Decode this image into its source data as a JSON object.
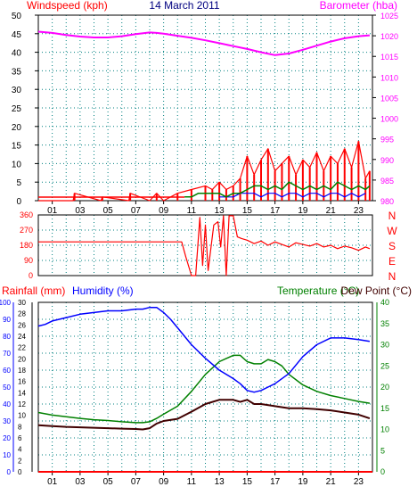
{
  "colors": {
    "windspeed": "#ff0000",
    "gust": "#ff0000",
    "wind_avg": "#008000",
    "wind_low": "#0000ff",
    "barometer": "#ff00ff",
    "direction": "#ff0000",
    "rainfall": "#ff0000",
    "humidity": "#0000ff",
    "temperature": "#008000",
    "dewpoint": "#400000",
    "axis_left": "#ff0000",
    "axis_baro": "#ff00ff",
    "axis_hum": "#0000ff",
    "axis_temp": "#008000",
    "grid": "#008080",
    "title": "#000080"
  },
  "chart_data": [
    {
      "type": "line",
      "title": "14 March 2011",
      "ylabel": "Windspeed (kph)",
      "y2label": "Barometer (hba)",
      "ylim": [
        0,
        50
      ],
      "y2lim": [
        980,
        1025
      ],
      "yticks": [
        0,
        5,
        10,
        15,
        20,
        25,
        30,
        35,
        40,
        45,
        50
      ],
      "y2ticks": [
        980,
        985,
        990,
        995,
        1000,
        1005,
        1010,
        1015,
        1020,
        1025
      ],
      "xlim": [
        0,
        24
      ],
      "xticks": [
        "01",
        "03",
        "05",
        "07",
        "09",
        "11",
        "13",
        "15",
        "17",
        "19",
        "21",
        "23"
      ],
      "grid": true,
      "series": [
        {
          "name": "Barometer",
          "axis": "right",
          "x": [
            0,
            1,
            2,
            3,
            4,
            5,
            6,
            7,
            8,
            8.5,
            9,
            10,
            11,
            12,
            13,
            14,
            15,
            16,
            17,
            18,
            19,
            20,
            21,
            22,
            23,
            23.8
          ],
          "values": [
            1021.0,
            1020.7,
            1020.2,
            1019.8,
            1019.6,
            1019.6,
            1019.9,
            1020.4,
            1020.8,
            1020.7,
            1020.5,
            1020.0,
            1019.5,
            1018.9,
            1018.2,
            1017.5,
            1016.8,
            1016.0,
            1015.3,
            1015.7,
            1016.6,
            1017.6,
            1018.6,
            1019.4,
            1019.9,
            1020.1
          ]
        },
        {
          "name": "Wind gust",
          "axis": "left",
          "x": [
            0,
            2.5,
            2.6,
            4.5,
            4.6,
            6.5,
            6.6,
            8.0,
            8.5,
            9.0,
            10.0,
            11.0,
            12.0,
            12.5,
            13.0,
            13.5,
            14.0,
            14.5,
            15.0,
            15.5,
            16.0,
            16.5,
            17.0,
            17.5,
            18.0,
            18.5,
            19.0,
            19.5,
            20.0,
            20.5,
            21.0,
            21.5,
            22.0,
            22.5,
            23.0,
            23.5,
            23.8
          ],
          "values": [
            0,
            0,
            2,
            0,
            1,
            0,
            2,
            0,
            2,
            0,
            2,
            3,
            4,
            3,
            5,
            3,
            4,
            6,
            12,
            7,
            11,
            14,
            8,
            10,
            12,
            7,
            11,
            9,
            13,
            8,
            12,
            10,
            14,
            9,
            16,
            6,
            8
          ]
        },
        {
          "name": "Wind average",
          "axis": "left",
          "x": [
            10.5,
            11.0,
            11.5,
            12.0,
            12.5,
            13.0,
            13.5,
            14.0,
            14.5,
            15.0,
            15.5,
            16.0,
            16.5,
            17.0,
            17.5,
            18.0,
            18.5,
            19.0,
            19.5,
            20.0,
            20.5,
            21.0,
            21.5,
            22.0,
            22.5,
            23.0,
            23.5,
            23.8
          ],
          "values": [
            1,
            1,
            2,
            2,
            2,
            2,
            1,
            2,
            2,
            3,
            4,
            4,
            3,
            4,
            3,
            5,
            4,
            3,
            4,
            3,
            4,
            3,
            5,
            4,
            3,
            4,
            3,
            4
          ]
        },
        {
          "name": "Wind low",
          "axis": "left",
          "x": [
            13.0,
            13.5,
            14.0,
            14.5,
            15.0,
            15.5,
            16.0,
            16.5,
            17.0,
            17.5,
            18.0,
            18.5,
            19.0,
            19.5,
            20.0,
            20.5,
            21.0,
            21.5,
            22.0,
            22.5,
            23.0,
            23.5
          ],
          "values": [
            1,
            1,
            1,
            2,
            2,
            2,
            1,
            2,
            2,
            1,
            2,
            2,
            1,
            2,
            2,
            1,
            2,
            2,
            1,
            2,
            1,
            2
          ]
        }
      ]
    },
    {
      "type": "line",
      "title": "",
      "ylabel": "",
      "y2label": "",
      "ylim": [
        0,
        360
      ],
      "yticks": [
        0,
        90,
        180,
        270,
        360
      ],
      "y2ticks": [
        "N",
        "W",
        "S",
        "E",
        "N"
      ],
      "xlim": [
        0,
        24
      ],
      "grid": true,
      "series": [
        {
          "name": "Wind direction",
          "x": [
            0,
            10.3,
            10.6,
            11.0,
            11.3,
            11.6,
            11.8,
            12.0,
            12.2,
            12.6,
            12.9,
            13.1,
            13.3,
            13.5,
            13.7,
            14.0,
            14.3,
            14.6,
            15.0,
            15.5,
            16.0,
            16.5,
            17.0,
            17.5,
            18.0,
            18.5,
            19.0,
            19.5,
            20.0,
            20.5,
            21.0,
            21.5,
            22.0,
            22.5,
            23.0,
            23.5,
            23.8
          ],
          "values": [
            200,
            200,
            110,
            0,
            0,
            345,
            60,
            300,
            30,
            300,
            320,
            170,
            355,
            0,
            355,
            355,
            230,
            220,
            210,
            190,
            205,
            180,
            200,
            185,
            170,
            195,
            185,
            175,
            190,
            170,
            180,
            160,
            175,
            165,
            150,
            170,
            160
          ]
        }
      ]
    },
    {
      "type": "line",
      "title": "",
      "ylabel": "Rainfall (mm)  Humidity (%)",
      "y2label": "Temperature (°C)Dew Point (°C)",
      "ylim": [
        0,
        100
      ],
      "rain_ticks": [
        0,
        2,
        4,
        6,
        8,
        10,
        12,
        14,
        16,
        18,
        20,
        22,
        24,
        26,
        28,
        30
      ],
      "hum_ticks": [
        0,
        10,
        20,
        30,
        40,
        50,
        60,
        70,
        80,
        90,
        100
      ],
      "y2lim": [
        0,
        40
      ],
      "y2ticks": [
        0,
        5,
        10,
        15,
        20,
        25,
        30,
        35,
        40
      ],
      "xlim": [
        0,
        24
      ],
      "xticks": [
        "01",
        "03",
        "05",
        "07",
        "09",
        "11",
        "13",
        "15",
        "17",
        "19",
        "21",
        "23"
      ],
      "grid": true,
      "series": [
        {
          "name": "Humidity",
          "axis": "humidity",
          "x": [
            0,
            0.5,
            1,
            2,
            3,
            4,
            5,
            6,
            7,
            7.5,
            8,
            8.5,
            9,
            9.5,
            10,
            11,
            12,
            13,
            14,
            14.5,
            15,
            15.5,
            16,
            16.5,
            17,
            18,
            19,
            20,
            21,
            22,
            23,
            23.8
          ],
          "values": [
            86,
            87,
            89,
            91,
            93,
            94,
            95,
            95,
            96,
            96,
            97,
            97,
            94,
            90,
            85,
            75,
            67,
            60,
            55,
            52,
            48,
            47,
            48,
            50,
            52,
            58,
            68,
            75,
            79,
            79,
            78,
            77
          ]
        },
        {
          "name": "Temperature",
          "axis": "temperature",
          "x": [
            0,
            1,
            2,
            3,
            4,
            5,
            6,
            7,
            7.5,
            8,
            8.5,
            9,
            10,
            11,
            12,
            13,
            14,
            14.5,
            15,
            15.5,
            16,
            16.5,
            17,
            17.5,
            18,
            19,
            20,
            21,
            22,
            23,
            23.8
          ],
          "values": [
            14.0,
            13.4,
            13.0,
            12.6,
            12.3,
            12.1,
            11.8,
            11.6,
            11.6,
            11.8,
            12.6,
            13.6,
            15.5,
            19.0,
            23.0,
            26.0,
            27.5,
            27.5,
            26.0,
            25.5,
            25.5,
            26.5,
            26.0,
            25.0,
            23.0,
            20.5,
            19.0,
            18.0,
            17.3,
            16.6,
            16.2
          ]
        },
        {
          "name": "Dew point",
          "axis": "temperature",
          "x": [
            0,
            1,
            2,
            3,
            4,
            5,
            6,
            7,
            7.5,
            8,
            8.5,
            9,
            10,
            11,
            12,
            13,
            14,
            14.5,
            15,
            15.5,
            16,
            17,
            18,
            19,
            20,
            21,
            22,
            23,
            23.8
          ],
          "values": [
            11.0,
            10.8,
            10.6,
            10.5,
            10.4,
            10.3,
            10.2,
            10.1,
            10.0,
            10.3,
            11.4,
            12.0,
            12.5,
            14.2,
            16.0,
            17.0,
            17.0,
            16.5,
            17.0,
            16.0,
            16.0,
            15.5,
            15.0,
            15.0,
            14.8,
            14.5,
            14.0,
            13.5,
            12.6
          ]
        },
        {
          "name": "Rainfall",
          "axis": "rain",
          "x": [
            0,
            24
          ],
          "values": [
            0,
            0
          ]
        }
      ]
    }
  ],
  "panels": {
    "top": {
      "left_title": "Windspeed (kph)",
      "center_title": "14 March 2011",
      "right_title": "Barometer (hba)"
    },
    "bottom": {
      "rain_label": "Rainfall (mm)",
      "hum_label": "Humidity (%)",
      "temp_label": "Temperature (°C)",
      "dew_label": "Dew Point (°C)"
    }
  }
}
